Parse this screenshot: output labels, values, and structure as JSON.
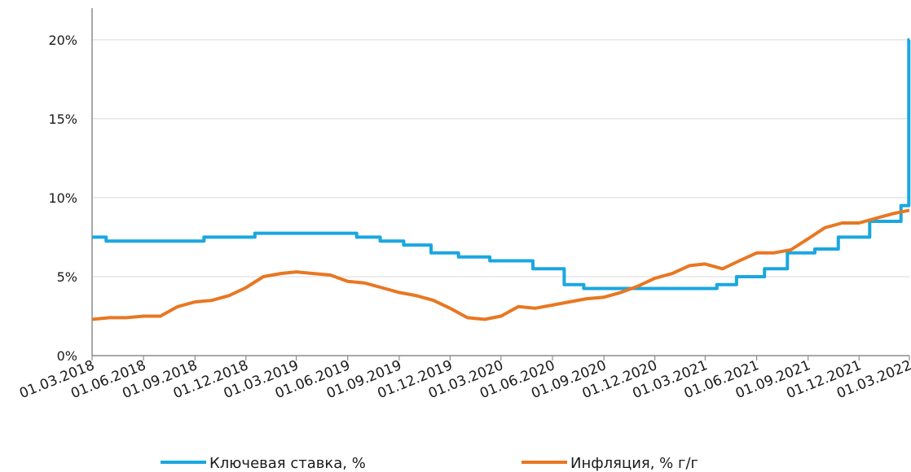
{
  "chart_data": {
    "type": "line",
    "title": "",
    "xlabel": "",
    "ylabel": "",
    "x_ticks": [
      "01.03.2018",
      "01.06.2018",
      "01.09.2018",
      "01.12.2018",
      "01.03.2019",
      "01.06.2019",
      "01.09.2019",
      "01.12.2019",
      "01.03.2020",
      "01.06.2020",
      "01.09.2020",
      "01.12.2020",
      "01.03.2021",
      "01.06.2021",
      "01.09.2021",
      "01.12.2021",
      "01.03.2022"
    ],
    "y_ticks": [
      "0%",
      "5%",
      "10%",
      "15%",
      "20%"
    ],
    "ylim": [
      0,
      22
    ],
    "xlim": [
      "2018-03-01",
      "2022-03-01"
    ],
    "grid": "horizontal",
    "legend_position": "bottom",
    "series": [
      {
        "name": "Ключевая ставка, %",
        "color": "#1aa7e0",
        "step": true,
        "points": [
          [
            "2018-03-01",
            7.5
          ],
          [
            "2018-03-26",
            7.25
          ],
          [
            "2018-09-17",
            7.5
          ],
          [
            "2018-12-17",
            7.75
          ],
          [
            "2019-06-17",
            7.5
          ],
          [
            "2019-07-29",
            7.25
          ],
          [
            "2019-09-09",
            7.0
          ],
          [
            "2019-10-28",
            6.5
          ],
          [
            "2019-12-16",
            6.25
          ],
          [
            "2020-02-10",
            6.0
          ],
          [
            "2020-04-27",
            5.5
          ],
          [
            "2020-06-22",
            4.5
          ],
          [
            "2020-07-27",
            4.25
          ],
          [
            "2021-03-22",
            4.5
          ],
          [
            "2021-04-26",
            5.0
          ],
          [
            "2021-06-15",
            5.5
          ],
          [
            "2021-07-26",
            6.5
          ],
          [
            "2021-09-13",
            6.75
          ],
          [
            "2021-10-25",
            7.5
          ],
          [
            "2021-12-20",
            8.5
          ],
          [
            "2022-02-14",
            9.5
          ],
          [
            "2022-02-28",
            20.0
          ]
        ]
      },
      {
        "name": "Инфляция, % г/г",
        "color": "#e87722",
        "step": false,
        "points": [
          [
            "2018-03-01",
            2.3
          ],
          [
            "2018-04-01",
            2.4
          ],
          [
            "2018-05-01",
            2.4
          ],
          [
            "2018-06-01",
            2.5
          ],
          [
            "2018-07-01",
            2.5
          ],
          [
            "2018-08-01",
            3.1
          ],
          [
            "2018-09-01",
            3.4
          ],
          [
            "2018-10-01",
            3.5
          ],
          [
            "2018-11-01",
            3.8
          ],
          [
            "2018-12-01",
            4.3
          ],
          [
            "2019-01-01",
            5.0
          ],
          [
            "2019-02-01",
            5.2
          ],
          [
            "2019-03-01",
            5.3
          ],
          [
            "2019-04-01",
            5.2
          ],
          [
            "2019-05-01",
            5.1
          ],
          [
            "2019-06-01",
            4.7
          ],
          [
            "2019-07-01",
            4.6
          ],
          [
            "2019-08-01",
            4.3
          ],
          [
            "2019-09-01",
            4.0
          ],
          [
            "2019-10-01",
            3.8
          ],
          [
            "2019-11-01",
            3.5
          ],
          [
            "2019-12-01",
            3.0
          ],
          [
            "2020-01-01",
            2.4
          ],
          [
            "2020-02-01",
            2.3
          ],
          [
            "2020-03-01",
            2.5
          ],
          [
            "2020-04-01",
            3.1
          ],
          [
            "2020-05-01",
            3.0
          ],
          [
            "2020-06-01",
            3.2
          ],
          [
            "2020-07-01",
            3.4
          ],
          [
            "2020-08-01",
            3.6
          ],
          [
            "2020-09-01",
            3.7
          ],
          [
            "2020-10-01",
            4.0
          ],
          [
            "2020-11-01",
            4.4
          ],
          [
            "2020-12-01",
            4.9
          ],
          [
            "2021-01-01",
            5.2
          ],
          [
            "2021-02-01",
            5.7
          ],
          [
            "2021-03-01",
            5.8
          ],
          [
            "2021-04-01",
            5.5
          ],
          [
            "2021-05-01",
            6.0
          ],
          [
            "2021-06-01",
            6.5
          ],
          [
            "2021-07-01",
            6.5
          ],
          [
            "2021-08-01",
            6.7
          ],
          [
            "2021-09-01",
            7.4
          ],
          [
            "2021-10-01",
            8.1
          ],
          [
            "2021-11-01",
            8.4
          ],
          [
            "2021-12-01",
            8.4
          ],
          [
            "2022-01-01",
            8.7
          ],
          [
            "2022-02-01",
            9.0
          ],
          [
            "2022-03-01",
            9.2
          ]
        ]
      }
    ]
  }
}
